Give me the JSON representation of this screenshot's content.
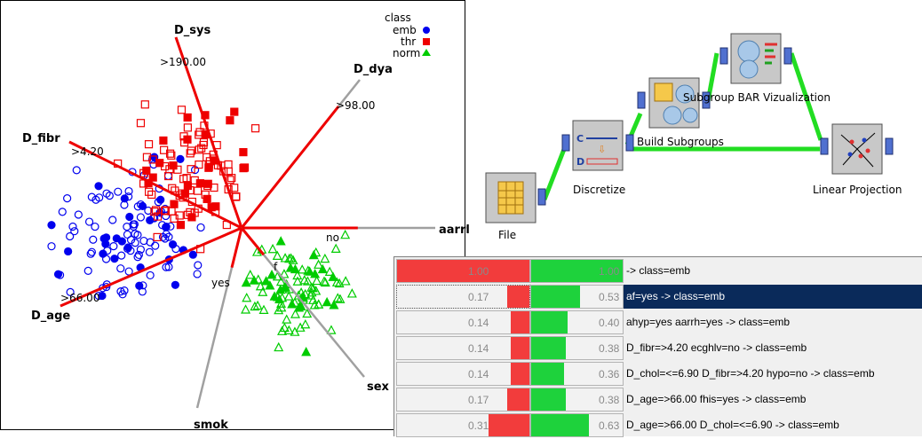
{
  "scatter": {
    "legend": {
      "title": "class",
      "items": [
        {
          "name": "emb",
          "color": "#0000ee",
          "shape": "circle"
        },
        {
          "name": "thr",
          "color": "#ee0000",
          "shape": "square"
        },
        {
          "name": "norm",
          "color": "#00cc00",
          "shape": "triangle"
        }
      ]
    },
    "anchors": [
      {
        "name": "D_sys",
        "value_label": ">190.00"
      },
      {
        "name": "D_dya",
        "value_label": ">98.00"
      },
      {
        "name": "D_fibr",
        "value_label": ">4.20"
      },
      {
        "name": "aarrl",
        "value_label": "no"
      },
      {
        "name": "D_age",
        "value_label": ">66.00"
      },
      {
        "name": "sex",
        "value_label": "f"
      },
      {
        "name": "smok",
        "value_label": "yes"
      }
    ],
    "colors": {
      "axis_active": "#ee0000",
      "axis_inactive": "#a0a0a0"
    }
  },
  "canvas": {
    "nodes": [
      {
        "name": "file",
        "label": "File",
        "icon": "file-icon"
      },
      {
        "name": "discretize",
        "label": "Discretize",
        "icon": "discretize-icon"
      },
      {
        "name": "build-subgroups",
        "label": "Build Subgroups",
        "icon": "subgroups-icon"
      },
      {
        "name": "subgroup-bar",
        "label": "Subgroup BAR Vizualization",
        "icon": "bar-viz-icon"
      },
      {
        "name": "linear-projection",
        "label": "Linear Projection",
        "icon": "projection-icon"
      }
    ],
    "link_color": "#22dd22"
  },
  "rules": {
    "rows": [
      {
        "support": "1.00",
        "support_frac": 1.0,
        "confidence": "1.00",
        "confidence_frac": 1.0,
        "text": "-> class=emb",
        "selected": false
      },
      {
        "support": "0.17",
        "support_frac": 0.17,
        "confidence": "0.53",
        "confidence_frac": 0.53,
        "text": "af=yes -> class=emb",
        "selected": true
      },
      {
        "support": "0.14",
        "support_frac": 0.14,
        "confidence": "0.40",
        "confidence_frac": 0.4,
        "text": "ahyp=yes  aarrh=yes -> class=emb",
        "selected": false
      },
      {
        "support": "0.14",
        "support_frac": 0.14,
        "confidence": "0.38",
        "confidence_frac": 0.38,
        "text": "D_fibr=>4.20  ecghlv=no -> class=emb",
        "selected": false
      },
      {
        "support": "0.14",
        "support_frac": 0.14,
        "confidence": "0.36",
        "confidence_frac": 0.36,
        "text": "D_chol=<=6.90  D_fibr=>4.20  hypo=no -> class=emb",
        "selected": false
      },
      {
        "support": "0.17",
        "support_frac": 0.17,
        "confidence": "0.38",
        "confidence_frac": 0.38,
        "text": "D_age=>66.00  fhis=yes -> class=emb",
        "selected": false
      },
      {
        "support": "0.31",
        "support_frac": 0.31,
        "confidence": "0.63",
        "confidence_frac": 0.63,
        "text": "D_age=>66.00  D_chol=<=6.90 -> class=emb",
        "selected": false
      }
    ]
  }
}
